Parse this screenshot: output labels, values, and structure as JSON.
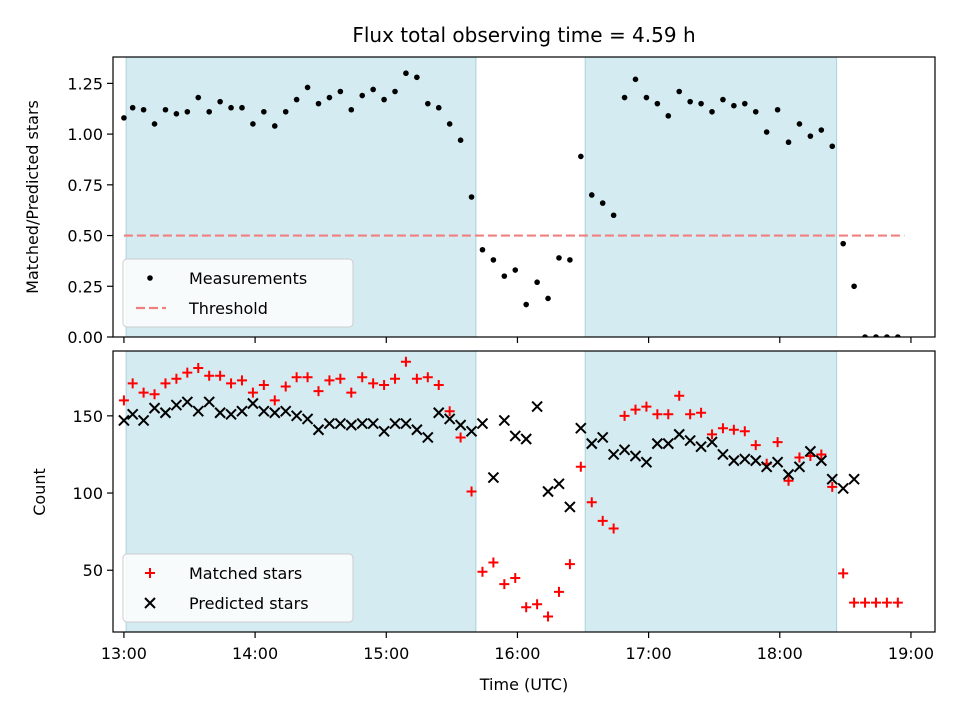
{
  "chart_data": [
    {
      "type": "scatter",
      "title": "Flux total observing time = 4.59 h",
      "xlabel": "",
      "ylabel": "Matched/Predicted stars",
      "xlim": [
        "12:55",
        "19:11"
      ],
      "ylim": [
        0,
        1.38
      ],
      "yticks": [
        "0.00",
        "0.25",
        "0.50",
        "0.75",
        "1.00",
        "1.25"
      ],
      "grid": false,
      "legend_position": "lower left",
      "shaded_intervals": [
        [
          "13:01",
          "15:41"
        ],
        [
          "16:31",
          "18:26"
        ]
      ],
      "threshold": {
        "name": "Threshold",
        "value": 0.5,
        "x_start": "13:00",
        "x_end": "18:57",
        "color": "#f08080",
        "style": "dashed"
      },
      "series": [
        {
          "name": "Measurements",
          "marker": "dot",
          "color": "#000000",
          "points": [
            [
              "13:00",
              1.08
            ],
            [
              "13:04",
              1.13
            ],
            [
              "13:09",
              1.12
            ],
            [
              "13:14",
              1.05
            ],
            [
              "13:19",
              1.12
            ],
            [
              "13:24",
              1.1
            ],
            [
              "13:29",
              1.11
            ],
            [
              "13:34",
              1.18
            ],
            [
              "13:39",
              1.11
            ],
            [
              "13:44",
              1.16
            ],
            [
              "13:49",
              1.13
            ],
            [
              "13:54",
              1.13
            ],
            [
              "13:59",
              1.05
            ],
            [
              "14:04",
              1.11
            ],
            [
              "14:09",
              1.04
            ],
            [
              "14:14",
              1.11
            ],
            [
              "14:19",
              1.17
            ],
            [
              "14:24",
              1.23
            ],
            [
              "14:29",
              1.15
            ],
            [
              "14:34",
              1.18
            ],
            [
              "14:39",
              1.21
            ],
            [
              "14:44",
              1.12
            ],
            [
              "14:49",
              1.19
            ],
            [
              "14:54",
              1.22
            ],
            [
              "14:59",
              1.17
            ],
            [
              "15:04",
              1.21
            ],
            [
              "15:09",
              1.3
            ],
            [
              "15:14",
              1.28
            ],
            [
              "15:19",
              1.15
            ],
            [
              "15:24",
              1.13
            ],
            [
              "15:29",
              1.05
            ],
            [
              "15:34",
              0.97
            ],
            [
              "15:39",
              0.69
            ],
            [
              "15:44",
              0.43
            ],
            [
              "15:49",
              0.38
            ],
            [
              "15:54",
              0.3
            ],
            [
              "15:59",
              0.33
            ],
            [
              "16:04",
              0.16
            ],
            [
              "16:09",
              0.27
            ],
            [
              "16:14",
              0.19
            ],
            [
              "16:19",
              0.39
            ],
            [
              "16:24",
              0.38
            ],
            [
              "16:29",
              0.89
            ],
            [
              "16:34",
              0.7
            ],
            [
              "16:39",
              0.66
            ],
            [
              "16:44",
              0.6
            ],
            [
              "16:49",
              1.18
            ],
            [
              "16:54",
              1.27
            ],
            [
              "16:59",
              1.18
            ],
            [
              "17:04",
              1.15
            ],
            [
              "17:09",
              1.09
            ],
            [
              "17:14",
              1.21
            ],
            [
              "17:19",
              1.16
            ],
            [
              "17:24",
              1.15
            ],
            [
              "17:29",
              1.11
            ],
            [
              "17:34",
              1.17
            ],
            [
              "17:39",
              1.14
            ],
            [
              "17:44",
              1.15
            ],
            [
              "17:49",
              1.11
            ],
            [
              "17:54",
              1.01
            ],
            [
              "17:59",
              1.12
            ],
            [
              "18:04",
              0.96
            ],
            [
              "18:09",
              1.05
            ],
            [
              "18:14",
              0.99
            ],
            [
              "18:19",
              1.02
            ],
            [
              "18:24",
              0.94
            ],
            [
              "18:29",
              0.46
            ],
            [
              "18:34",
              0.25
            ],
            [
              "18:39",
              0.0
            ],
            [
              "18:44",
              0.0
            ],
            [
              "18:49",
              0.0
            ],
            [
              "18:54",
              0.0
            ]
          ]
        }
      ]
    },
    {
      "type": "scatter",
      "title": "",
      "xlabel": "Time (UTC)",
      "ylabel": "Count",
      "xlim": [
        "12:55",
        "19:11"
      ],
      "ylim": [
        10,
        192
      ],
      "yticks": [
        "50",
        "100",
        "150"
      ],
      "xticks": [
        "13:00",
        "14:00",
        "15:00",
        "16:00",
        "17:00",
        "18:00",
        "19:00"
      ],
      "grid": false,
      "legend_position": "lower left",
      "shaded_intervals": [
        [
          "13:01",
          "15:41"
        ],
        [
          "16:31",
          "18:26"
        ]
      ],
      "series": [
        {
          "name": "Matched stars",
          "marker": "plus",
          "color": "#ff0000",
          "points": [
            [
              "13:00",
              160
            ],
            [
              "13:04",
              171
            ],
            [
              "13:09",
              165
            ],
            [
              "13:14",
              164
            ],
            [
              "13:19",
              171
            ],
            [
              "13:24",
              174
            ],
            [
              "13:29",
              178
            ],
            [
              "13:34",
              181
            ],
            [
              "13:39",
              176
            ],
            [
              "13:44",
              176
            ],
            [
              "13:49",
              171
            ],
            [
              "13:54",
              173
            ],
            [
              "13:59",
              165
            ],
            [
              "14:04",
              170
            ],
            [
              "14:09",
              160
            ],
            [
              "14:14",
              169
            ],
            [
              "14:19",
              175
            ],
            [
              "14:24",
              175
            ],
            [
              "14:29",
              166
            ],
            [
              "14:34",
              173
            ],
            [
              "14:39",
              174
            ],
            [
              "14:44",
              165
            ],
            [
              "14:49",
              175
            ],
            [
              "14:54",
              171
            ],
            [
              "14:59",
              170
            ],
            [
              "15:04",
              174
            ],
            [
              "15:09",
              185
            ],
            [
              "15:14",
              174
            ],
            [
              "15:19",
              175
            ],
            [
              "15:24",
              170
            ],
            [
              "15:29",
              153
            ],
            [
              "15:34",
              136
            ],
            [
              "15:39",
              101
            ],
            [
              "15:44",
              49
            ],
            [
              "15:49",
              55
            ],
            [
              "15:54",
              41
            ],
            [
              "15:59",
              45
            ],
            [
              "16:04",
              26
            ],
            [
              "16:09",
              28
            ],
            [
              "16:14",
              20
            ],
            [
              "16:19",
              36
            ],
            [
              "16:24",
              54
            ],
            [
              "16:29",
              117
            ],
            [
              "16:34",
              94
            ],
            [
              "16:39",
              82
            ],
            [
              "16:44",
              77
            ],
            [
              "16:49",
              150
            ],
            [
              "16:54",
              154
            ],
            [
              "16:59",
              156
            ],
            [
              "17:04",
              151
            ],
            [
              "17:09",
              151
            ],
            [
              "17:14",
              163
            ],
            [
              "17:19",
              151
            ],
            [
              "17:24",
              152
            ],
            [
              "17:29",
              138
            ],
            [
              "17:34",
              142
            ],
            [
              "17:39",
              141
            ],
            [
              "17:44",
              140
            ],
            [
              "17:49",
              131
            ],
            [
              "17:54",
              119
            ],
            [
              "17:59",
              133
            ],
            [
              "18:04",
              108
            ],
            [
              "18:09",
              123
            ],
            [
              "18:14",
              124
            ],
            [
              "18:19",
              125
            ],
            [
              "18:24",
              104
            ],
            [
              "18:29",
              48
            ],
            [
              "18:34",
              29
            ],
            [
              "18:39",
              29
            ],
            [
              "18:44",
              29
            ],
            [
              "18:49",
              29
            ],
            [
              "18:54",
              29
            ]
          ]
        },
        {
          "name": "Predicted stars",
          "marker": "x",
          "color": "#000000",
          "points": [
            [
              "13:00",
              147
            ],
            [
              "13:04",
              151
            ],
            [
              "13:09",
              147
            ],
            [
              "13:14",
              155
            ],
            [
              "13:19",
              152
            ],
            [
              "13:24",
              157
            ],
            [
              "13:29",
              159
            ],
            [
              "13:34",
              153
            ],
            [
              "13:39",
              159
            ],
            [
              "13:44",
              152
            ],
            [
              "13:49",
              151
            ],
            [
              "13:54",
              153
            ],
            [
              "13:59",
              158
            ],
            [
              "14:04",
              153
            ],
            [
              "14:09",
              152
            ],
            [
              "14:14",
              153
            ],
            [
              "14:19",
              150
            ],
            [
              "14:24",
              148
            ],
            [
              "14:29",
              141
            ],
            [
              "14:34",
              145
            ],
            [
              "14:39",
              145
            ],
            [
              "14:44",
              144
            ],
            [
              "14:49",
              145
            ],
            [
              "14:54",
              145
            ],
            [
              "14:59",
              140
            ],
            [
              "15:04",
              145
            ],
            [
              "15:09",
              145
            ],
            [
              "15:14",
              141
            ],
            [
              "15:19",
              136
            ],
            [
              "15:24",
              152
            ],
            [
              "15:29",
              148
            ],
            [
              "15:34",
              144
            ],
            [
              "15:39",
              140
            ],
            [
              "15:44",
              145
            ],
            [
              "15:49",
              110
            ],
            [
              "15:54",
              147
            ],
            [
              "15:59",
              137
            ],
            [
              "16:04",
              135
            ],
            [
              "16:09",
              156
            ],
            [
              "16:14",
              101
            ],
            [
              "16:19",
              106
            ],
            [
              "16:24",
              91
            ],
            [
              "16:29",
              142
            ],
            [
              "16:34",
              132
            ],
            [
              "16:39",
              136
            ],
            [
              "16:44",
              125
            ],
            [
              "16:49",
              128
            ],
            [
              "16:54",
              124
            ],
            [
              "16:59",
              120
            ],
            [
              "17:04",
              132
            ],
            [
              "17:09",
              132
            ],
            [
              "17:14",
              138
            ],
            [
              "17:19",
              134
            ],
            [
              "17:24",
              130
            ],
            [
              "17:29",
              133
            ],
            [
              "17:34",
              125
            ],
            [
              "17:39",
              121
            ],
            [
              "17:44",
              122
            ],
            [
              "17:49",
              121
            ],
            [
              "17:54",
              117
            ],
            [
              "17:59",
              120
            ],
            [
              "18:04",
              112
            ],
            [
              "18:09",
              117
            ],
            [
              "18:14",
              127
            ],
            [
              "18:19",
              121
            ],
            [
              "18:24",
              109
            ],
            [
              "18:29",
              103
            ],
            [
              "18:34",
              109
            ]
          ]
        }
      ]
    }
  ],
  "colors": {
    "shade": "#d4ebf1",
    "shade_edge": "#a9d3db"
  }
}
